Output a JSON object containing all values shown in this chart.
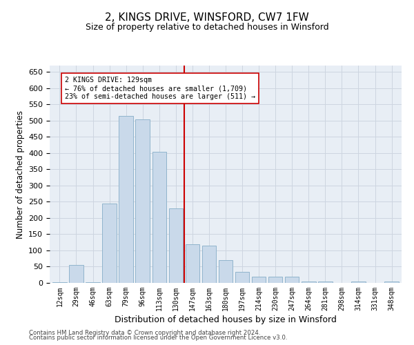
{
  "title": "2, KINGS DRIVE, WINSFORD, CW7 1FW",
  "subtitle": "Size of property relative to detached houses in Winsford",
  "xlabel": "Distribution of detached houses by size in Winsford",
  "ylabel": "Number of detached properties",
  "categories": [
    "12sqm",
    "29sqm",
    "46sqm",
    "63sqm",
    "79sqm",
    "96sqm",
    "113sqm",
    "130sqm",
    "147sqm",
    "163sqm",
    "180sqm",
    "197sqm",
    "214sqm",
    "230sqm",
    "247sqm",
    "264sqm",
    "281sqm",
    "298sqm",
    "314sqm",
    "331sqm",
    "348sqm"
  ],
  "values": [
    2,
    55,
    3,
    245,
    515,
    505,
    405,
    230,
    120,
    115,
    70,
    35,
    20,
    20,
    20,
    5,
    5,
    0,
    5,
    0,
    5
  ],
  "bar_color": "#c9d9ea",
  "bar_edge_color": "#90b4cc",
  "vline_x": 7.5,
  "vline_color": "#cc0000",
  "annotation_text": "2 KINGS DRIVE: 129sqm\n← 76% of detached houses are smaller (1,709)\n23% of semi-detached houses are larger (511) →",
  "annotation_box_color": "#ffffff",
  "annotation_box_edge": "#cc0000",
  "ylim": [
    0,
    670
  ],
  "yticks": [
    0,
    50,
    100,
    150,
    200,
    250,
    300,
    350,
    400,
    450,
    500,
    550,
    600,
    650
  ],
  "grid_color": "#cdd5e0",
  "background_color": "#e8eef5",
  "footer1": "Contains HM Land Registry data © Crown copyright and database right 2024.",
  "footer2": "Contains public sector information licensed under the Open Government Licence v3.0."
}
